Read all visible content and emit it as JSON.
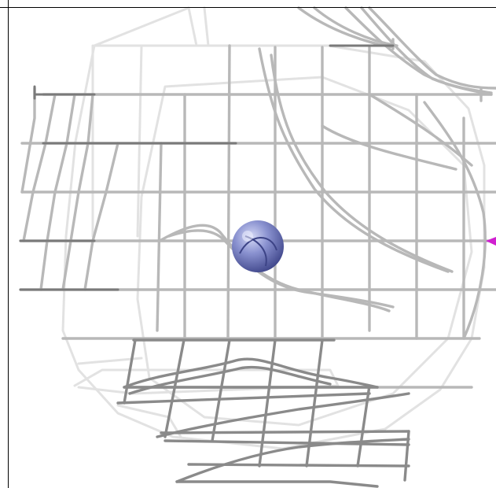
{
  "viewer": {
    "background": "#ffffff",
    "frame_color": "#000000",
    "mesh_colors": {
      "light": "#e2e2e2",
      "mid": "#b8b8b8",
      "dark": "#7a7a7a"
    },
    "atom_color": "#8088c8",
    "marker_color": "#d020d0"
  }
}
